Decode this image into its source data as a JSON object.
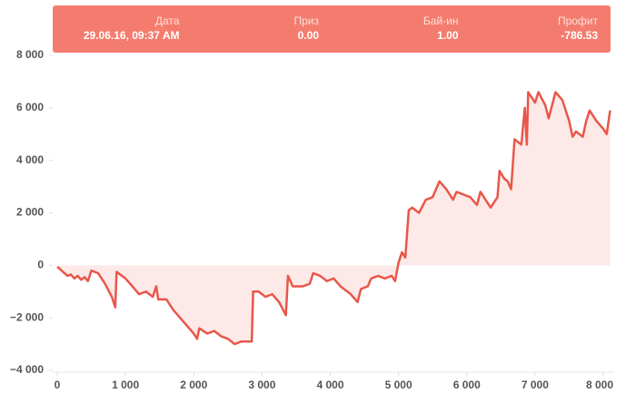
{
  "chart_data": {
    "type": "area",
    "tooltip": {
      "labels": [
        "Дата",
        "Приз",
        "Бай-ин",
        "Профит"
      ],
      "values": [
        "29.06.16, 09:37 AM",
        "0.00",
        "1.00",
        "-786.53"
      ]
    },
    "x": [
      0,
      150,
      200,
      250,
      300,
      350,
      400,
      450,
      500,
      600,
      700,
      800,
      850,
      870,
      1000,
      1100,
      1200,
      1300,
      1400,
      1450,
      1480,
      1600,
      1700,
      1800,
      1900,
      2000,
      2050,
      2080,
      2200,
      2300,
      2400,
      2500,
      2600,
      2700,
      2800,
      2850,
      2870,
      2950,
      3050,
      3150,
      3250,
      3350,
      3380,
      3450,
      3600,
      3700,
      3750,
      3850,
      3950,
      4050,
      4150,
      4300,
      4400,
      4450,
      4550,
      4600,
      4700,
      4800,
      4900,
      4950,
      5000,
      5050,
      5100,
      5150,
      5200,
      5300,
      5400,
      5500,
      5600,
      5700,
      5800,
      5850,
      5950,
      6050,
      6150,
      6200,
      6300,
      6350,
      6450,
      6480,
      6550,
      6600,
      6650,
      6700,
      6800,
      6850,
      6880,
      6900,
      7000,
      7050,
      7150,
      7200,
      7300,
      7400,
      7450,
      7500,
      7550,
      7600,
      7700,
      7750,
      7800,
      7900,
      8000,
      8050,
      8100
    ],
    "series": [
      {
        "color": "#e8574a",
        "fill": "#fde9e7",
        "values": [
          -50,
          -400,
          -350,
          -500,
          -400,
          -550,
          -450,
          -600,
          -200,
          -300,
          -700,
          -1200,
          -1600,
          -250,
          -500,
          -800,
          -1100,
          -1000,
          -1200,
          -800,
          -1300,
          -1300,
          -1700,
          -2000,
          -2300,
          -2600,
          -2800,
          -2400,
          -2600,
          -2500,
          -2700,
          -2800,
          -3000,
          -2900,
          -2900,
          -2900,
          -1000,
          -1000,
          -1200,
          -1100,
          -1400,
          -1900,
          -400,
          -800,
          -800,
          -700,
          -300,
          -400,
          -600,
          -500,
          -800,
          -1100,
          -1400,
          -900,
          -800,
          -500,
          -400,
          -500,
          -400,
          -600,
          100,
          500,
          300,
          2100,
          2200,
          2000,
          2500,
          2600,
          3200,
          2900,
          2500,
          2800,
          2700,
          2600,
          2300,
          2800,
          2400,
          2200,
          2600,
          3600,
          3300,
          3200,
          2900,
          4800,
          4600,
          6000,
          4600,
          6600,
          6200,
          6600,
          6100,
          5600,
          6600,
          6300,
          5900,
          5500,
          4900,
          5100,
          4900,
          5500,
          5900,
          5500,
          5200,
          5000,
          5900
        ]
      }
    ],
    "xlim": [
      0,
      8100
    ],
    "xticks": [
      0,
      {
        "value": 1000,
        "label": "1 000"
      },
      {
        "value": 2000,
        "label": "2 000"
      },
      {
        "value": 3000,
        "label": "3 000"
      },
      {
        "value": 4000,
        "label": "4 000"
      },
      {
        "value": 5000,
        "label": "5 000"
      },
      {
        "value": 6000,
        "label": "6 000"
      },
      {
        "value": 7000,
        "label": "7 000"
      },
      {
        "value": 8000,
        "label": "8 000"
      }
    ],
    "ylim": [
      -4000,
      8000
    ],
    "yticks": [
      {
        "value": -4000,
        "label": "−4 000"
      },
      {
        "value": -2000,
        "label": "−2 000"
      },
      0,
      {
        "value": 2000,
        "label": "2 000"
      },
      {
        "value": 4000,
        "label": "4 000"
      },
      {
        "value": 6000,
        "label": "6 000"
      },
      {
        "value": 8000,
        "label": "8 000"
      }
    ]
  }
}
